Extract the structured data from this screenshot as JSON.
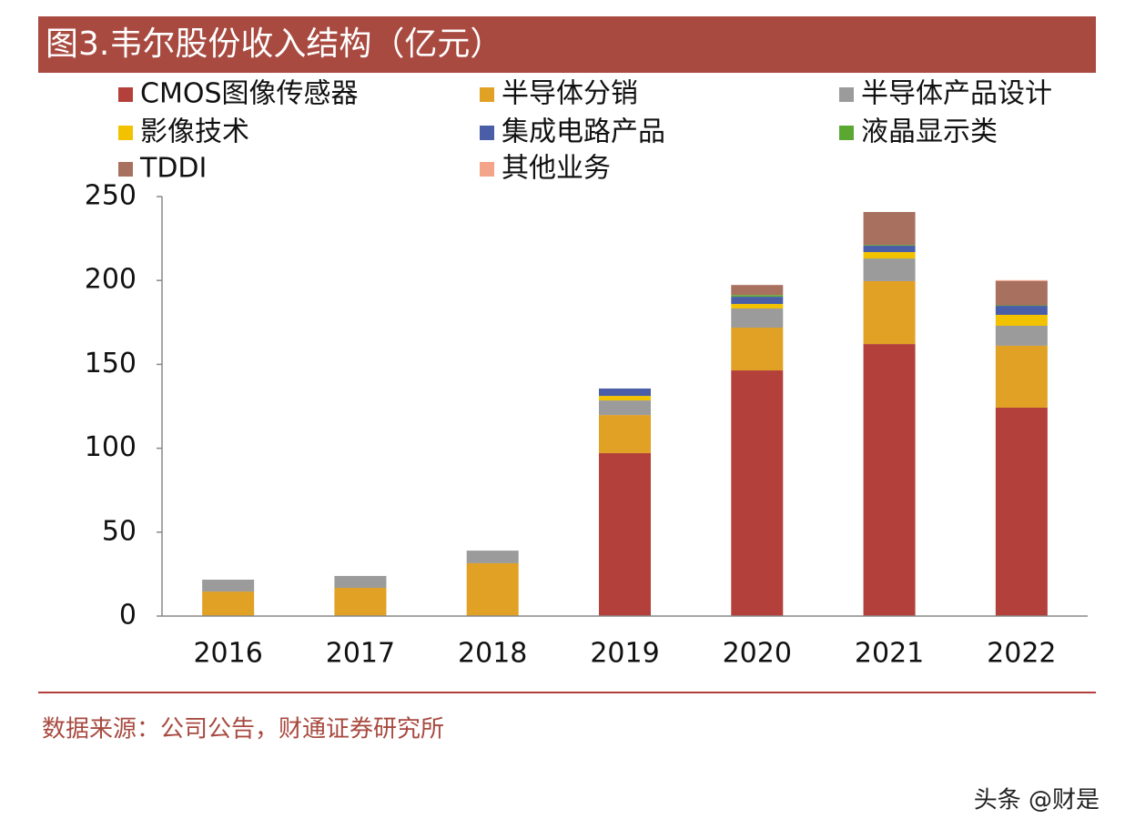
{
  "chart_data": {
    "type": "bar",
    "stacked": true,
    "title": "图3.韦尔股份收入结构（亿元）",
    "categories": [
      "2016",
      "2017",
      "2018",
      "2019",
      "2020",
      "2021",
      "2022"
    ],
    "series": [
      {
        "name": "CMOS图像传感器",
        "color": "#b3403a",
        "values": [
          0,
          0,
          0,
          97.1,
          146.4,
          162.1,
          124.2
        ]
      },
      {
        "name": "半导体分销",
        "color": "#e0a124",
        "values": [
          14.6,
          16.8,
          31.5,
          22.7,
          25.5,
          37.5,
          36.9
        ]
      },
      {
        "name": "半导体产品设计",
        "color": "#9b9b9b",
        "values": [
          7.1,
          7.1,
          7.5,
          8.7,
          11.4,
          13.5,
          11.9
        ]
      },
      {
        "name": "影像技术",
        "color": "#f2c200",
        "values": [
          0,
          0,
          0,
          2.7,
          2.7,
          3.8,
          6.5
        ]
      },
      {
        "name": "集成电路产品",
        "color": "#4a5ea8",
        "values": [
          0,
          0,
          0,
          4.4,
          4.3,
          3.8,
          5.4
        ]
      },
      {
        "name": "液晶显示类",
        "color": "#5aa832",
        "values": [
          0,
          0,
          0,
          0,
          1,
          0.5,
          0.3
        ]
      },
      {
        "name": "TDDI",
        "color": "#a8705f",
        "values": [
          0,
          0,
          0,
          0,
          6,
          19.6,
          14.5
        ]
      },
      {
        "name": "其他业务",
        "color": "#f4a488",
        "values": [
          0,
          0,
          0,
          0,
          0,
          0,
          0.5
        ]
      }
    ],
    "ylim": [
      0,
      250
    ],
    "yticks": [
      0,
      50,
      100,
      150,
      200,
      250
    ],
    "source": "数据来源：公司公告，财通证券研究所",
    "watermark": "头条 @财是"
  }
}
